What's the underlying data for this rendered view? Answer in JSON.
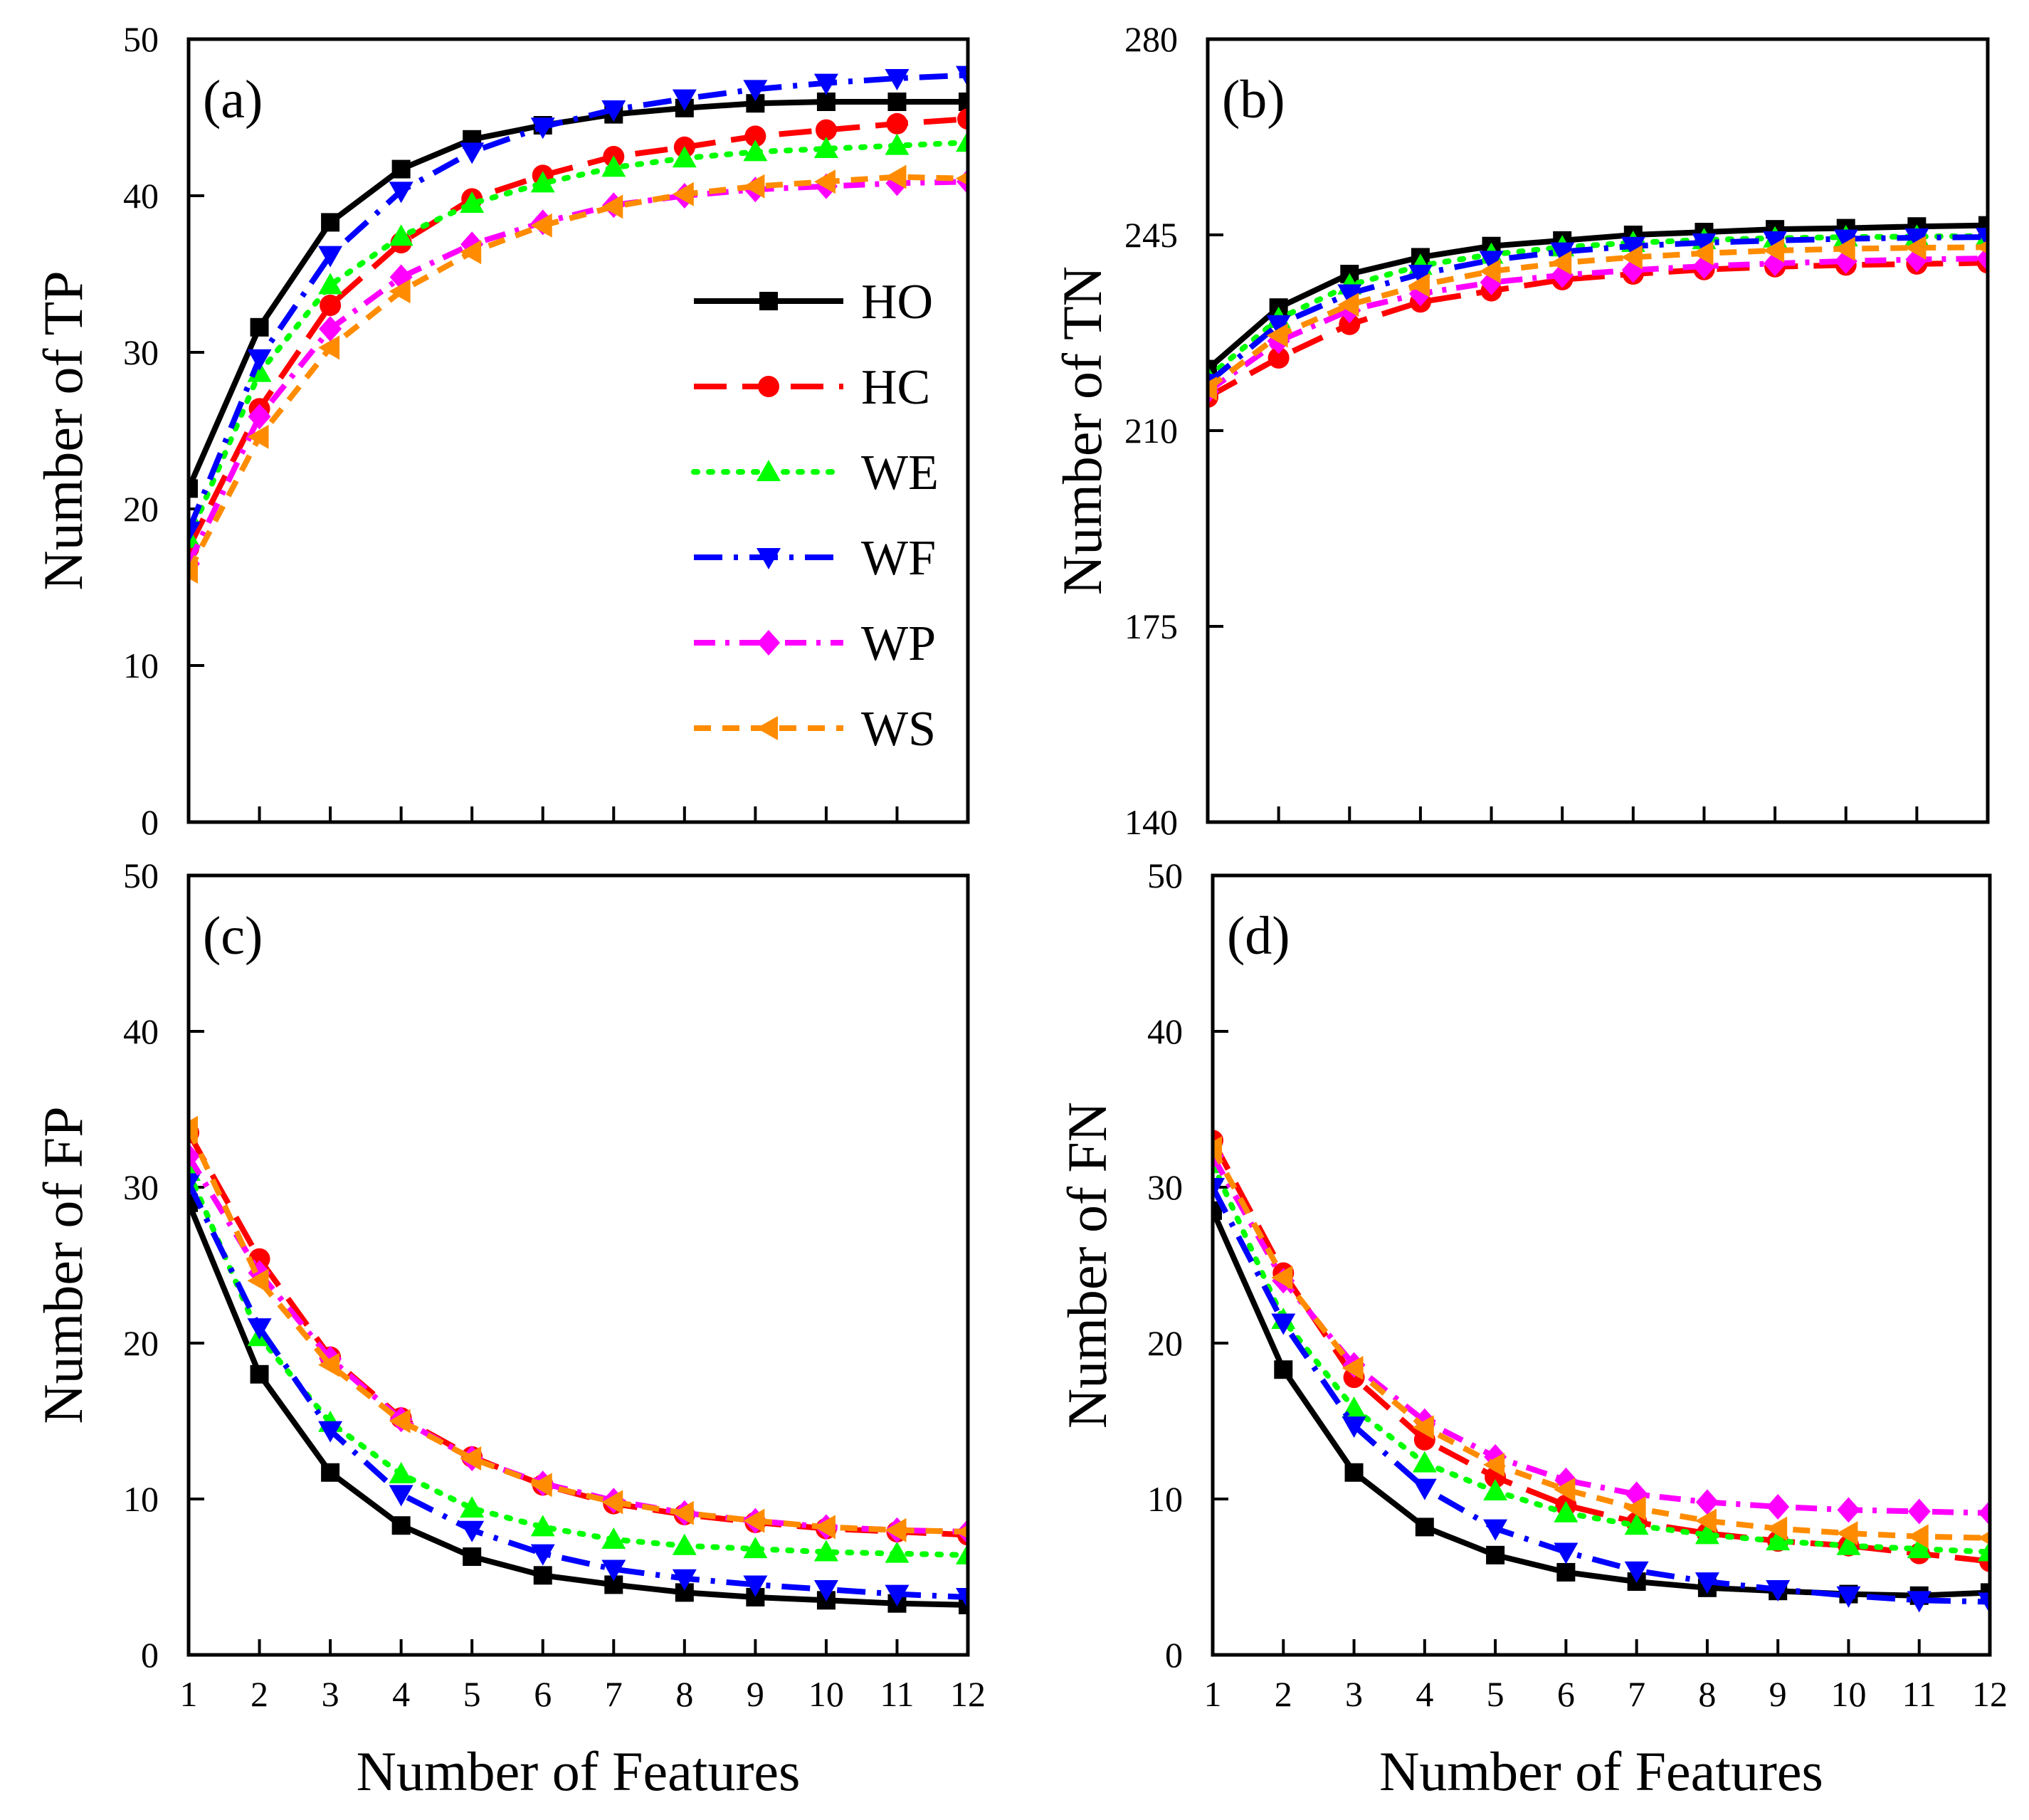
{
  "chart_data": [
    {
      "type": "line",
      "panel_label": "(a)",
      "ylabel": "Number of TP",
      "xlabel": "",
      "xlim": [
        1,
        12
      ],
      "ylim": [
        0,
        50
      ],
      "x": [
        1,
        2,
        3,
        4,
        5,
        6,
        7,
        8,
        9,
        10,
        11,
        12
      ],
      "x_ticks": [
        "1",
        "2",
        "3",
        "4",
        "5",
        "6",
        "7",
        "8",
        "9",
        "10",
        "11",
        "12"
      ],
      "y_ticks": [
        "0",
        "10",
        "20",
        "30",
        "40",
        "50"
      ],
      "legend": "upper-right",
      "series": [
        {
          "name": "HO",
          "color": "#000000",
          "marker": "square",
          "dash": "solid",
          "values": [
            21.3,
            31.6,
            38.3,
            41.7,
            43.6,
            44.5,
            45.2,
            45.6,
            45.9,
            46.0,
            46.0,
            46.0
          ]
        },
        {
          "name": "HC",
          "color": "#ff0000",
          "marker": "circle",
          "dash": "dash",
          "values": [
            17.5,
            26.4,
            33.0,
            37.0,
            39.8,
            41.3,
            42.5,
            43.1,
            43.8,
            44.2,
            44.6,
            44.9
          ]
        },
        {
          "name": "WE",
          "color": "#00ff00",
          "marker": "triangle-up",
          "dash": "dot",
          "values": [
            18.1,
            28.7,
            34.3,
            37.4,
            39.5,
            40.8,
            41.8,
            42.4,
            42.8,
            43.0,
            43.2,
            43.4
          ]
        },
        {
          "name": "WF",
          "color": "#0000ff",
          "marker": "triangle-down",
          "dash": "dashdot",
          "values": [
            18.6,
            29.6,
            36.2,
            40.3,
            42.8,
            44.4,
            45.5,
            46.2,
            46.8,
            47.2,
            47.5,
            47.7
          ]
        },
        {
          "name": "WP",
          "color": "#ff00ff",
          "marker": "diamond",
          "dash": "dashdot2",
          "values": [
            16.5,
            25.9,
            31.5,
            34.8,
            36.9,
            38.3,
            39.4,
            40.0,
            40.4,
            40.6,
            40.8,
            40.9
          ]
        },
        {
          "name": "WS",
          "color": "#ff8c00",
          "marker": "triangle-left",
          "dash": "shortdash",
          "values": [
            16.0,
            24.6,
            30.3,
            33.9,
            36.4,
            38.1,
            39.3,
            40.1,
            40.6,
            40.9,
            41.2,
            41.1
          ]
        }
      ]
    },
    {
      "type": "line",
      "panel_label": "(b)",
      "ylabel": "Number of TN",
      "xlabel": "",
      "xlim": [
        1,
        12
      ],
      "ylim": [
        140,
        280
      ],
      "x": [
        1,
        2,
        3,
        4,
        5,
        6,
        7,
        8,
        9,
        10,
        11,
        12
      ],
      "x_ticks": [
        "1",
        "2",
        "3",
        "4",
        "5",
        "6",
        "7",
        "8",
        "9",
        "10",
        "11",
        "12"
      ],
      "y_ticks": [
        "140",
        "175",
        "210",
        "245",
        "280"
      ],
      "series": [
        {
          "name": "HO",
          "color": "#000000",
          "marker": "square",
          "dash": "solid",
          "values": [
            221,
            232,
            238,
            241,
            243,
            244,
            245,
            245.5,
            246,
            246.2,
            246.5,
            246.7
          ]
        },
        {
          "name": "HC",
          "color": "#ff0000",
          "marker": "circle",
          "dash": "dash",
          "values": [
            216,
            223,
            229,
            233,
            235,
            237,
            238,
            238.8,
            239.3,
            239.6,
            239.8,
            240
          ]
        },
        {
          "name": "WE",
          "color": "#00ff00",
          "marker": "triangle-up",
          "dash": "dot",
          "values": [
            219.5,
            230,
            236,
            239.5,
            241.5,
            242.8,
            243.6,
            244.1,
            244.4,
            244.6,
            244.7,
            244.8
          ]
        },
        {
          "name": "WF",
          "color": "#0000ff",
          "marker": "triangle-down",
          "dash": "dashdot",
          "values": [
            218.5,
            229,
            234.5,
            238,
            240.5,
            242,
            243,
            243.6,
            244,
            244.3,
            244.5,
            244.6
          ]
        },
        {
          "name": "WP",
          "color": "#ff00ff",
          "marker": "diamond",
          "dash": "dashdot2",
          "values": [
            217,
            226,
            231.5,
            234.5,
            236.5,
            237.8,
            238.7,
            239.4,
            239.9,
            240.3,
            240.6,
            240.8
          ]
        },
        {
          "name": "WS",
          "color": "#ff8c00",
          "marker": "triangle-left",
          "dash": "shortdash",
          "values": [
            217.5,
            227,
            232.5,
            236,
            238.5,
            240,
            241,
            241.7,
            242.2,
            242.5,
            242.7,
            242.8
          ]
        }
      ]
    },
    {
      "type": "line",
      "panel_label": "(c)",
      "ylabel": "Number of FP",
      "xlabel": "Number of Features",
      "xlim": [
        1,
        12
      ],
      "ylim": [
        0,
        50
      ],
      "x": [
        1,
        2,
        3,
        4,
        5,
        6,
        7,
        8,
        9,
        10,
        11,
        12
      ],
      "x_ticks": [
        "1",
        "2",
        "3",
        "4",
        "5",
        "6",
        "7",
        "8",
        "9",
        "10",
        "11",
        "12"
      ],
      "y_ticks": [
        "0",
        "10",
        "20",
        "30",
        "40",
        "50"
      ],
      "series": [
        {
          "name": "HO",
          "color": "#000000",
          "marker": "square",
          "dash": "solid",
          "values": [
            29.0,
            18.0,
            11.7,
            8.3,
            6.3,
            5.1,
            4.5,
            4.0,
            3.7,
            3.5,
            3.3,
            3.2
          ]
        },
        {
          "name": "HC",
          "color": "#ff0000",
          "marker": "circle",
          "dash": "dash",
          "values": [
            33.5,
            25.4,
            19.1,
            15.2,
            12.7,
            10.9,
            9.7,
            9.0,
            8.5,
            8.1,
            7.9,
            7.7
          ]
        },
        {
          "name": "WE",
          "color": "#00ff00",
          "marker": "triangle-up",
          "dash": "dot",
          "values": [
            31.0,
            20.4,
            14.9,
            11.6,
            9.4,
            8.2,
            7.4,
            7.0,
            6.8,
            6.6,
            6.5,
            6.4
          ]
        },
        {
          "name": "WF",
          "color": "#0000ff",
          "marker": "triangle-down",
          "dash": "dashdot",
          "values": [
            30.3,
            21.0,
            14.4,
            10.3,
            8.0,
            6.5,
            5.5,
            4.9,
            4.5,
            4.2,
            3.9,
            3.7
          ]
        },
        {
          "name": "WP",
          "color": "#ff00ff",
          "marker": "diamond",
          "dash": "dashdot2",
          "values": [
            32.0,
            24.5,
            19.0,
            15.1,
            12.6,
            11.0,
            9.9,
            9.1,
            8.6,
            8.2,
            8.0,
            7.9
          ]
        },
        {
          "name": "WS",
          "color": "#ff8c00",
          "marker": "triangle-left",
          "dash": "shortdash",
          "values": [
            33.8,
            24.0,
            18.6,
            15.0,
            12.6,
            10.9,
            9.8,
            9.1,
            8.6,
            8.2,
            8.0,
            7.9
          ]
        }
      ]
    },
    {
      "type": "line",
      "panel_label": "(d)",
      "ylabel": "Number of FN",
      "xlabel": "Number of Features",
      "xlim": [
        1,
        12
      ],
      "ylim": [
        0,
        50
      ],
      "x": [
        1,
        2,
        3,
        4,
        5,
        6,
        7,
        8,
        9,
        10,
        11,
        12
      ],
      "x_ticks": [
        "1",
        "2",
        "3",
        "4",
        "5",
        "6",
        "7",
        "8",
        "9",
        "10",
        "11",
        "12"
      ],
      "y_ticks": [
        "0",
        "10",
        "20",
        "30",
        "40",
        "50"
      ],
      "series": [
        {
          "name": "HO",
          "color": "#000000",
          "marker": "square",
          "dash": "solid",
          "values": [
            28.5,
            18.3,
            11.7,
            8.2,
            6.4,
            5.3,
            4.7,
            4.3,
            4.1,
            3.9,
            3.8,
            4.0
          ]
        },
        {
          "name": "HC",
          "color": "#ff0000",
          "marker": "circle",
          "dash": "dash",
          "values": [
            33.0,
            24.5,
            17.8,
            13.8,
            11.4,
            9.6,
            8.5,
            7.8,
            7.3,
            7.0,
            6.5,
            6.0
          ]
        },
        {
          "name": "WE",
          "color": "#00ff00",
          "marker": "triangle-up",
          "dash": "dot",
          "values": [
            31.5,
            21.5,
            15.8,
            12.3,
            10.5,
            9.1,
            8.3,
            7.7,
            7.3,
            7.0,
            6.8,
            6.6
          ]
        },
        {
          "name": "WF",
          "color": "#0000ff",
          "marker": "triangle-down",
          "dash": "dashdot",
          "values": [
            30.0,
            21.3,
            14.7,
            10.7,
            8.1,
            6.6,
            5.4,
            4.7,
            4.2,
            3.8,
            3.5,
            3.4
          ]
        },
        {
          "name": "WP",
          "color": "#ff00ff",
          "marker": "diamond",
          "dash": "dashdot2",
          "values": [
            32.0,
            24.0,
            18.6,
            15.0,
            12.7,
            11.2,
            10.3,
            9.8,
            9.5,
            9.3,
            9.2,
            9.1
          ]
        },
        {
          "name": "WS",
          "color": "#ff8c00",
          "marker": "triangle-left",
          "dash": "shortdash",
          "values": [
            32.5,
            24.2,
            18.4,
            14.6,
            12.2,
            10.6,
            9.4,
            8.6,
            8.1,
            7.8,
            7.6,
            7.5
          ]
        }
      ]
    }
  ]
}
